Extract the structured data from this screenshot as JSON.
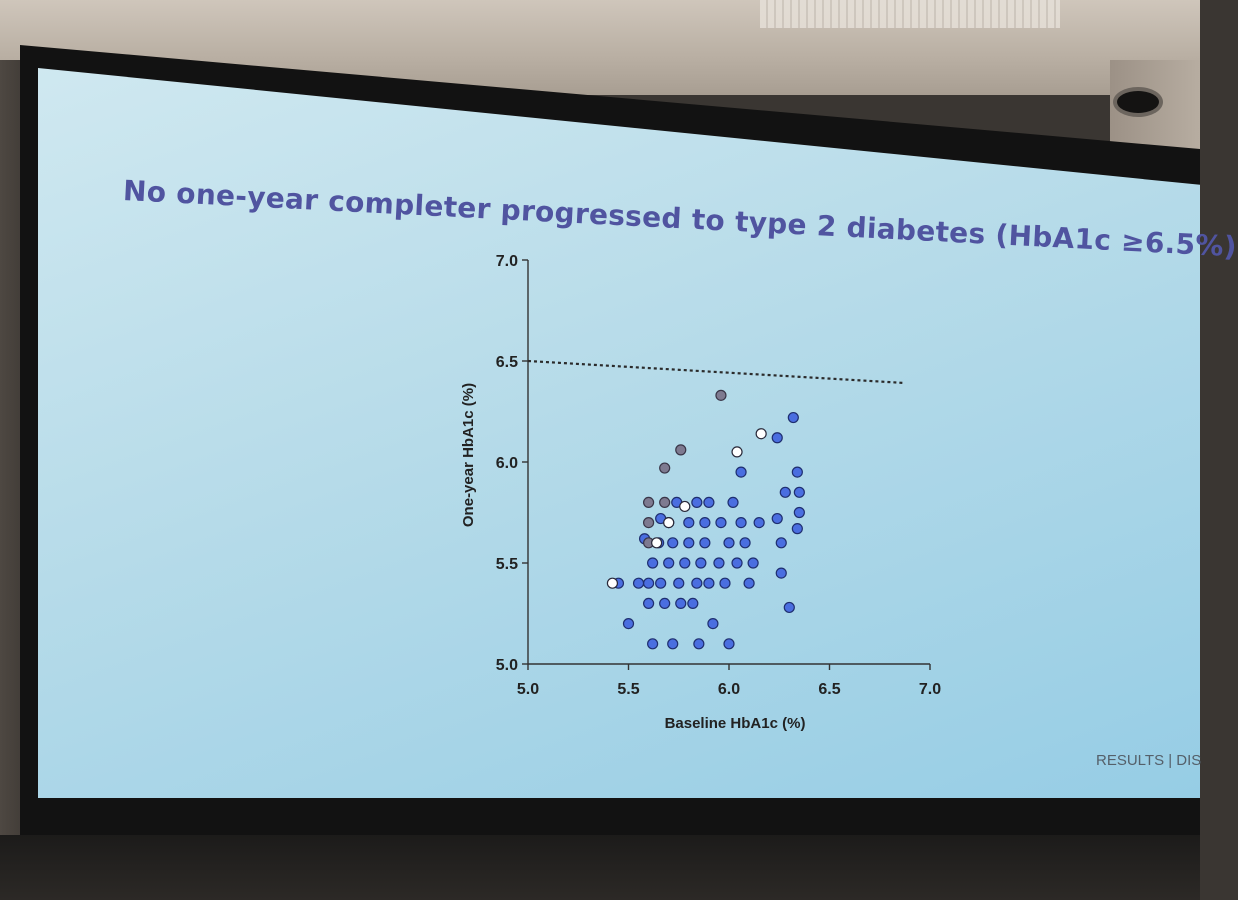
{
  "slide": {
    "title": "No one-year completer progressed to type 2 diabetes (HbA1c ≥6.5%)",
    "footer": "RESULTS | DIS"
  },
  "chart_data": {
    "type": "scatter",
    "title": "",
    "xlabel": "Baseline HbA1c (%)",
    "ylabel": "One-year HbA1c (%)",
    "xlim": [
      5.0,
      7.0
    ],
    "ylim": [
      5.0,
      7.0
    ],
    "xticks": [
      "5.0",
      "5.5",
      "6.0",
      "6.5",
      "7.0"
    ],
    "yticks": [
      "5.0",
      "5.5",
      "6.0",
      "6.5",
      "7.0"
    ],
    "reference_line": {
      "y": 6.5,
      "style": "dotted"
    },
    "colors": {
      "blue": "#4a6ee0",
      "grey": "#7e7a90",
      "open": "#ffffff"
    },
    "series": [
      {
        "marker": "filled-blue",
        "points": [
          [
            5.45,
            5.4
          ],
          [
            5.5,
            5.2
          ],
          [
            5.55,
            5.4
          ],
          [
            5.6,
            5.3
          ],
          [
            5.6,
            5.4
          ],
          [
            5.62,
            5.5
          ],
          [
            5.62,
            5.1
          ],
          [
            5.65,
            5.6
          ],
          [
            5.66,
            5.4
          ],
          [
            5.68,
            5.3
          ],
          [
            5.7,
            5.5
          ],
          [
            5.7,
            5.7
          ],
          [
            5.72,
            5.6
          ],
          [
            5.72,
            5.1
          ],
          [
            5.75,
            5.4
          ],
          [
            5.76,
            5.3
          ],
          [
            5.78,
            5.5
          ],
          [
            5.8,
            5.6
          ],
          [
            5.8,
            5.7
          ],
          [
            5.82,
            5.3
          ],
          [
            5.84,
            5.4
          ],
          [
            5.85,
            5.1
          ],
          [
            5.86,
            5.5
          ],
          [
            5.88,
            5.6
          ],
          [
            5.88,
            5.7
          ],
          [
            5.9,
            5.4
          ],
          [
            5.9,
            5.8
          ],
          [
            5.92,
            5.2
          ],
          [
            5.95,
            5.5
          ],
          [
            5.96,
            5.7
          ],
          [
            5.98,
            5.4
          ],
          [
            6.0,
            5.6
          ],
          [
            6.0,
            5.1
          ],
          [
            6.02,
            5.8
          ],
          [
            6.04,
            5.5
          ],
          [
            6.06,
            5.7
          ],
          [
            6.08,
            5.6
          ],
          [
            6.1,
            5.4
          ],
          [
            6.12,
            5.5
          ],
          [
            6.15,
            5.7
          ],
          [
            6.06,
            5.95
          ],
          [
            6.24,
            5.72
          ],
          [
            6.26,
            5.6
          ],
          [
            6.28,
            5.85
          ],
          [
            6.3,
            5.28
          ],
          [
            6.34,
            5.95
          ],
          [
            6.35,
            5.85
          ],
          [
            6.35,
            5.75
          ],
          [
            6.34,
            5.67
          ],
          [
            6.32,
            6.22
          ],
          [
            6.24,
            6.12
          ],
          [
            5.84,
            5.8
          ],
          [
            5.74,
            5.8
          ],
          [
            5.66,
            5.72
          ],
          [
            5.58,
            5.62
          ],
          [
            6.26,
            5.45
          ]
        ]
      },
      {
        "marker": "filled-grey",
        "points": [
          [
            5.6,
            5.8
          ],
          [
            5.68,
            5.8
          ],
          [
            5.6,
            5.7
          ],
          [
            5.68,
            5.97
          ],
          [
            5.76,
            6.06
          ],
          [
            5.96,
            6.33
          ],
          [
            5.6,
            5.6
          ]
        ]
      },
      {
        "marker": "open",
        "points": [
          [
            5.42,
            5.4
          ],
          [
            5.64,
            5.6
          ],
          [
            5.7,
            5.7
          ],
          [
            5.78,
            5.78
          ],
          [
            6.04,
            6.05
          ],
          [
            6.16,
            6.14
          ]
        ]
      }
    ]
  }
}
